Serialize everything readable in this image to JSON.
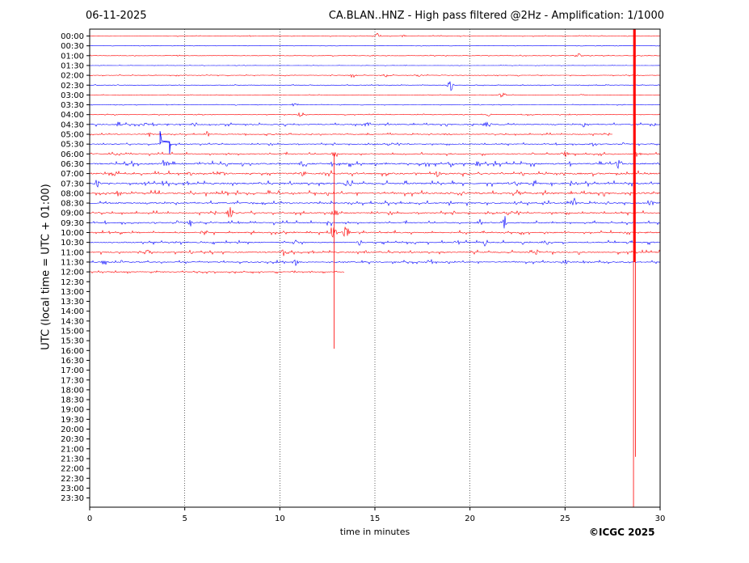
{
  "header": {
    "date": "06-11-2025",
    "title": "CA.BLAN..HNZ - High pass filtered @2Hz - Amplification: 1/1000"
  },
  "footer": {
    "copyright": "©ICGC 2025"
  },
  "colors": {
    "red_trace": "#ff0000",
    "blue_trace": "#0000ff",
    "frame": "#000000",
    "grid": "#000000"
  },
  "chart_data": {
    "type": "line",
    "title": "CA.BLAN..HNZ - High pass filtered @2Hz - Amplification: 1/1000",
    "xlabel": "time in minutes",
    "ylabel": "UTC (local time = UTC + 01:00)",
    "xlim": [
      0,
      30
    ],
    "x_ticks": [
      0,
      5,
      10,
      15,
      20,
      25,
      30
    ],
    "grid": "vertical dotted lines at 5-minute intervals",
    "y_tick_labels": [
      "00:00",
      "00:30",
      "01:00",
      "01:30",
      "02:00",
      "02:30",
      "03:00",
      "03:30",
      "04:00",
      "04:30",
      "05:00",
      "05:30",
      "06:00",
      "06:30",
      "07:00",
      "07:30",
      "08:00",
      "08:30",
      "09:00",
      "09:30",
      "10:00",
      "10:30",
      "11:00",
      "11:30",
      "12:00",
      "12:30",
      "13:00",
      "13:30",
      "14:00",
      "14:30",
      "15:00",
      "15:30",
      "16:00",
      "16:30",
      "17:00",
      "17:30",
      "18:00",
      "18:30",
      "19:00",
      "19:30",
      "20:00",
      "20:30",
      "21:00",
      "21:30",
      "22:00",
      "22:30",
      "23:00",
      "23:30"
    ],
    "series": [
      {
        "label": "00:00",
        "color": "red",
        "end_minute": 30,
        "activity": 1,
        "events": [
          [
            15.2,
            5
          ],
          [
            16.5,
            2
          ]
        ]
      },
      {
        "label": "00:30",
        "color": "blue",
        "end_minute": 30,
        "activity": 0.5,
        "events": []
      },
      {
        "label": "01:00",
        "color": "red",
        "end_minute": 30,
        "activity": 1,
        "events": [
          [
            25.7,
            4
          ]
        ]
      },
      {
        "label": "01:30",
        "color": "blue",
        "end_minute": 30,
        "activity": 0.5,
        "events": []
      },
      {
        "label": "02:00",
        "color": "red",
        "end_minute": 30,
        "activity": 1.2,
        "events": [
          [
            13.8,
            3
          ],
          [
            15.6,
            3
          ],
          [
            17.3,
            2
          ]
        ]
      },
      {
        "label": "02:30",
        "color": "blue",
        "end_minute": 30,
        "activity": 1,
        "events": [
          [
            19.0,
            7
          ]
        ]
      },
      {
        "label": "03:00",
        "color": "red",
        "end_minute": 30,
        "activity": 0.8,
        "events": [
          [
            21.7,
            4
          ],
          [
            26.0,
            2
          ]
        ]
      },
      {
        "label": "03:30",
        "color": "blue",
        "end_minute": 30,
        "activity": 0.8,
        "events": [
          [
            10.8,
            3
          ]
        ]
      },
      {
        "label": "04:00",
        "color": "red",
        "end_minute": 30,
        "activity": 1,
        "events": [
          [
            11.1,
            4
          ],
          [
            21.0,
            2
          ],
          [
            23.0,
            2
          ]
        ]
      },
      {
        "label": "04:30",
        "color": "blue",
        "end_minute": 30,
        "activity": 2.5,
        "events": [
          [
            1.5,
            3
          ],
          [
            3.0,
            3
          ],
          [
            5.5,
            3
          ],
          [
            14.6,
            4
          ],
          [
            20.8,
            4
          ],
          [
            26.0,
            3
          ],
          [
            29.6,
            4
          ]
        ]
      },
      {
        "label": "05:00",
        "color": "red",
        "end_minute": 27.5,
        "activity": 2,
        "events": [
          [
            3.2,
            4
          ],
          [
            6.2,
            3
          ],
          [
            18.8,
            3
          ]
        ]
      },
      {
        "label": "05:30",
        "color": "blue",
        "end_minute": 30,
        "activity": 2,
        "events": [
          [
            26.5,
            4
          ]
        ],
        "offset": [
          3.7,
          4.2,
          -16
        ]
      },
      {
        "label": "06:00",
        "color": "red",
        "end_minute": 30,
        "activity": 2.5,
        "events": [
          [
            1.5,
            3
          ],
          [
            12.9,
            4
          ],
          [
            25.0,
            4
          ],
          [
            28.8,
            5
          ]
        ]
      },
      {
        "label": "06:30",
        "color": "blue",
        "end_minute": 30,
        "activity": 4,
        "events": [
          [
            4.0,
            5
          ],
          [
            11.2,
            5
          ],
          [
            19.0,
            5
          ],
          [
            27.8,
            6
          ]
        ]
      },
      {
        "label": "07:00",
        "color": "red",
        "end_minute": 30,
        "activity": 4,
        "events": [
          [
            5.2,
            5
          ],
          [
            7.0,
            5
          ],
          [
            11.2,
            6
          ],
          [
            18.3,
            4
          ]
        ]
      },
      {
        "label": "07:30",
        "color": "blue",
        "end_minute": 30,
        "activity": 4,
        "events": [
          [
            0.4,
            6
          ],
          [
            13.5,
            5
          ],
          [
            22.5,
            5
          ]
        ]
      },
      {
        "label": "08:00",
        "color": "red",
        "end_minute": 30,
        "activity": 4,
        "events": [
          [
            1.5,
            4
          ],
          [
            5.3,
            4
          ],
          [
            19.5,
            5
          ],
          [
            22.5,
            5
          ]
        ]
      },
      {
        "label": "08:30",
        "color": "blue",
        "end_minute": 30,
        "activity": 3.5,
        "events": [
          [
            25.5,
            6
          ],
          [
            29.5,
            5
          ]
        ]
      },
      {
        "label": "09:00",
        "color": "red",
        "end_minute": 30,
        "activity": 3,
        "events": [
          [
            7.4,
            9
          ],
          [
            12.9,
            4
          ]
        ]
      },
      {
        "label": "09:30",
        "color": "blue",
        "end_minute": 30,
        "activity": 3,
        "events": [
          [
            5.3,
            4
          ],
          [
            12.6,
            4
          ],
          [
            20.5,
            5
          ],
          [
            21.8,
            11
          ]
        ]
      },
      {
        "label": "10:00",
        "color": "red",
        "end_minute": 30,
        "activity": 3,
        "events": [
          [
            12.8,
            10
          ],
          [
            13.5,
            10
          ],
          [
            6.0,
            3
          ]
        ]
      },
      {
        "label": "10:30",
        "color": "blue",
        "end_minute": 30,
        "activity": 3,
        "events": [
          [
            10.8,
            4
          ],
          [
            14.2,
            4
          ],
          [
            20.8,
            4
          ],
          [
            24.0,
            4
          ]
        ]
      },
      {
        "label": "11:00",
        "color": "red",
        "end_minute": 30,
        "activity": 3,
        "events": [
          [
            3.0,
            4
          ],
          [
            10.2,
            5
          ],
          [
            14.5,
            3
          ],
          [
            23.5,
            4
          ]
        ]
      },
      {
        "label": "11:30",
        "color": "blue",
        "end_minute": 30,
        "activity": 2.5,
        "events": [
          [
            0.8,
            4
          ],
          [
            10.8,
            4
          ],
          [
            17.8,
            3
          ],
          [
            25.0,
            3
          ]
        ]
      },
      {
        "label": "12:00",
        "color": "red",
        "end_minute": 13.4,
        "activity": 2,
        "events": []
      }
    ],
    "spikes": [
      {
        "minute": 28.6,
        "from_label": "00:00",
        "to_label": "23:30",
        "color": "red",
        "note": "long vertical trace"
      },
      {
        "minute": 28.7,
        "from_label": "00:00",
        "to_label": "21:00",
        "color": "red",
        "note": ""
      },
      {
        "minute": 12.85,
        "from_label": "06:00",
        "to_label": "15:30",
        "color": "red",
        "note": ""
      }
    ]
  }
}
